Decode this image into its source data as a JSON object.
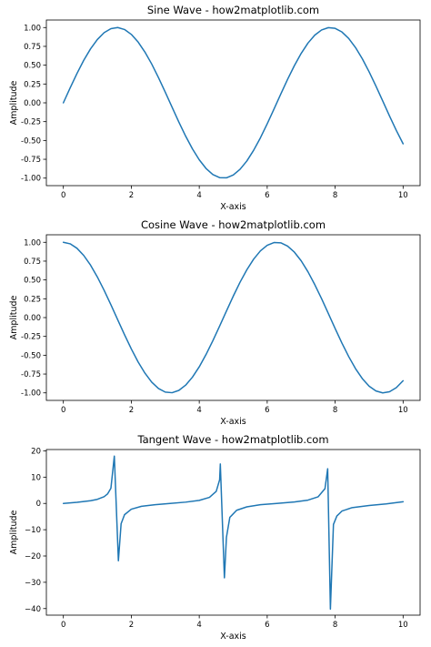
{
  "chart_data": [
    {
      "type": "line",
      "title": "Sine Wave - how2matplotlib.com",
      "xlabel": "X-axis",
      "ylabel": "Amplitude",
      "xlim": [
        -0.5,
        10.5
      ],
      "ylim": [
        -1.1,
        1.1
      ],
      "xticks": [
        0,
        2,
        4,
        6,
        8,
        10
      ],
      "yticks": [
        1.0,
        0.75,
        0.5,
        0.25,
        0.0,
        -0.25,
        -0.5,
        -0.75,
        -1.0
      ],
      "ytick_labels": [
        "1.00",
        "0.75",
        "0.50",
        "0.25",
        "0.00",
        "-0.25",
        "-0.50",
        "-0.75",
        "-1.00"
      ],
      "grid": false,
      "series": [
        {
          "color": "#1f77b4",
          "x": [
            0,
            0.2,
            0.4,
            0.6,
            0.8,
            1.0,
            1.2,
            1.4,
            1.6,
            1.8,
            2.0,
            2.2,
            2.4,
            2.6,
            2.8,
            3.0,
            3.2,
            3.4,
            3.6,
            3.8,
            4.0,
            4.2,
            4.4,
            4.6,
            4.8,
            5.0,
            5.2,
            5.4,
            5.6,
            5.8,
            6.0,
            6.2,
            6.4,
            6.6,
            6.8,
            7.0,
            7.2,
            7.4,
            7.6,
            7.8,
            8.0,
            8.2,
            8.4,
            8.6,
            8.8,
            9.0,
            9.2,
            9.4,
            9.6,
            9.8,
            10.0
          ],
          "y": [
            0.0,
            0.199,
            0.389,
            0.565,
            0.717,
            0.841,
            0.932,
            0.985,
            1.0,
            0.974,
            0.909,
            0.808,
            0.675,
            0.516,
            0.335,
            0.141,
            -0.058,
            -0.256,
            -0.443,
            -0.612,
            -0.757,
            -0.872,
            -0.952,
            -0.994,
            -0.996,
            -0.959,
            -0.883,
            -0.773,
            -0.631,
            -0.465,
            -0.279,
            -0.083,
            0.117,
            0.312,
            0.494,
            0.657,
            0.794,
            0.899,
            0.968,
            0.999,
            0.989,
            0.941,
            0.855,
            0.734,
            0.585,
            0.412,
            0.223,
            0.025,
            -0.174,
            -0.366,
            -0.544
          ]
        }
      ]
    },
    {
      "type": "line",
      "title": "Cosine Wave - how2matplotlib.com",
      "xlabel": "X-axis",
      "ylabel": "Amplitude",
      "xlim": [
        -0.5,
        10.5
      ],
      "ylim": [
        -1.1,
        1.1
      ],
      "xticks": [
        0,
        2,
        4,
        6,
        8,
        10
      ],
      "yticks": [
        1.0,
        0.75,
        0.5,
        0.25,
        0.0,
        -0.25,
        -0.5,
        -0.75,
        -1.0
      ],
      "ytick_labels": [
        "1.00",
        "0.75",
        "0.50",
        "0.25",
        "0.00",
        "-0.25",
        "-0.50",
        "-0.75",
        "-1.00"
      ],
      "grid": false,
      "series": [
        {
          "color": "#1f77b4",
          "x": [
            0,
            0.2,
            0.4,
            0.6,
            0.8,
            1.0,
            1.2,
            1.4,
            1.6,
            1.8,
            2.0,
            2.2,
            2.4,
            2.6,
            2.8,
            3.0,
            3.2,
            3.4,
            3.6,
            3.8,
            4.0,
            4.2,
            4.4,
            4.6,
            4.8,
            5.0,
            5.2,
            5.4,
            5.6,
            5.8,
            6.0,
            6.2,
            6.4,
            6.6,
            6.8,
            7.0,
            7.2,
            7.4,
            7.6,
            7.8,
            8.0,
            8.2,
            8.4,
            8.6,
            8.8,
            9.0,
            9.2,
            9.4,
            9.6,
            9.8,
            10.0
          ],
          "y": [
            1.0,
            0.98,
            0.921,
            0.825,
            0.697,
            0.54,
            0.362,
            0.17,
            -0.029,
            -0.227,
            -0.416,
            -0.589,
            -0.737,
            -0.857,
            -0.942,
            -0.99,
            -0.998,
            -0.967,
            -0.897,
            -0.791,
            -0.654,
            -0.49,
            -0.307,
            -0.112,
            0.087,
            0.284,
            0.469,
            0.635,
            0.776,
            0.886,
            0.96,
            0.997,
            0.993,
            0.95,
            0.869,
            0.754,
            0.608,
            0.438,
            0.252,
            0.054,
            -0.146,
            -0.339,
            -0.519,
            -0.679,
            -0.811,
            -0.911,
            -0.975,
            -1.0,
            -0.985,
            -0.931,
            -0.839
          ]
        }
      ]
    },
    {
      "type": "line",
      "title": "Tangent Wave - how2matplotlib.com",
      "xlabel": "X-axis",
      "ylabel": "Amplitude",
      "xlim": [
        -0.5,
        10.5
      ],
      "ylim": [
        -42.5,
        20.5
      ],
      "xticks": [
        0,
        2,
        4,
        6,
        8,
        10
      ],
      "yticks": [
        20,
        10,
        0,
        -10,
        -20,
        -30,
        -40
      ],
      "ytick_labels": [
        "20",
        "10",
        "0",
        "−10",
        "−20",
        "−30",
        "−40"
      ],
      "grid": false,
      "series": [
        {
          "color": "#1f77b4",
          "x": [
            0,
            0.4,
            0.8,
            1.0,
            1.2,
            1.3,
            1.4,
            1.5,
            1.62,
            1.7,
            1.8,
            2.0,
            2.3,
            2.7,
            3.14,
            3.6,
            4.0,
            4.3,
            4.5,
            4.6,
            4.62,
            4.74,
            4.8,
            4.9,
            5.1,
            5.4,
            5.8,
            6.28,
            6.8,
            7.2,
            7.5,
            7.7,
            7.78,
            7.86,
            7.95,
            8.05,
            8.2,
            8.5,
            9.0,
            9.5,
            10.0
          ],
          "y": [
            0.0,
            0.42,
            1.03,
            1.56,
            2.57,
            3.6,
            5.8,
            18.0,
            -21.8,
            -7.7,
            -4.3,
            -2.2,
            -1.1,
            -0.47,
            0.0,
            0.49,
            1.16,
            2.3,
            4.6,
            9.0,
            15.0,
            -28.3,
            -12.9,
            -5.3,
            -2.6,
            -1.3,
            -0.5,
            0.0,
            0.56,
            1.26,
            2.53,
            5.6,
            13.2,
            -40.2,
            -8.0,
            -4.8,
            -2.9,
            -1.6,
            -0.8,
            -0.2,
            0.65
          ]
        }
      ]
    }
  ]
}
